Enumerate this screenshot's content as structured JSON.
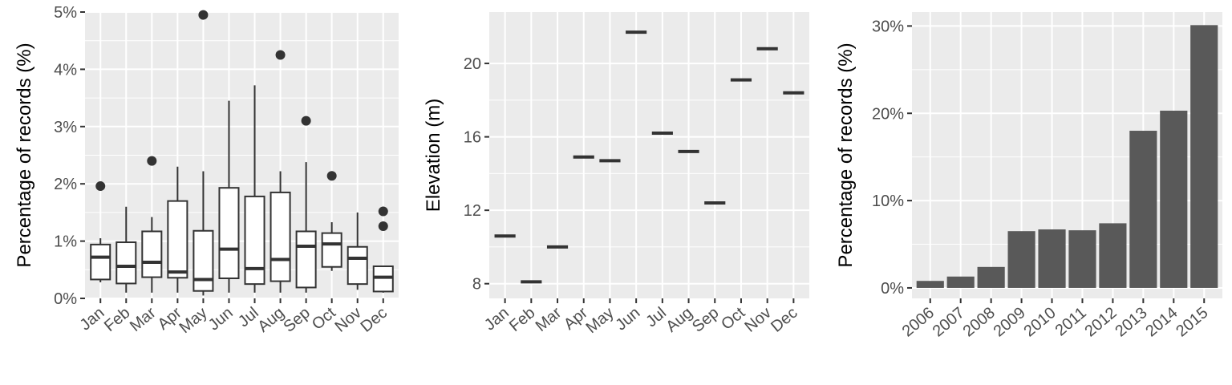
{
  "chart_data": [
    {
      "type": "box",
      "ylabel": "Percentage of records (%)",
      "xlabel": "",
      "ylim": [
        0,
        5
      ],
      "yticks": [
        "0%",
        "1%",
        "2%",
        "3%",
        "4%",
        "5%"
      ],
      "ytick_values": [
        0,
        1,
        2,
        3,
        4,
        5
      ],
      "categories": [
        "Jan",
        "Feb",
        "Mar",
        "Apr",
        "May",
        "Jun",
        "Jul",
        "Aug",
        "Sep",
        "Oct",
        "Nov",
        "Dec"
      ],
      "boxes": [
        {
          "min": 0.28,
          "q1": 0.33,
          "median": 0.72,
          "q3": 0.94,
          "max": 1.05,
          "outliers": [
            1.96
          ]
        },
        {
          "min": 0.1,
          "q1": 0.26,
          "median": 0.56,
          "q3": 0.98,
          "max": 1.6,
          "outliers": []
        },
        {
          "min": 0.1,
          "q1": 0.37,
          "median": 0.63,
          "q3": 1.17,
          "max": 1.42,
          "outliers": [
            2.4
          ]
        },
        {
          "min": 0.1,
          "q1": 0.36,
          "median": 0.46,
          "q3": 1.7,
          "max": 2.3,
          "outliers": []
        },
        {
          "min": 0.05,
          "q1": 0.13,
          "median": 0.33,
          "q3": 1.18,
          "max": 2.22,
          "outliers": [
            4.95
          ]
        },
        {
          "min": 0.1,
          "q1": 0.35,
          "median": 0.86,
          "q3": 1.93,
          "max": 3.45,
          "outliers": []
        },
        {
          "min": 0.1,
          "q1": 0.25,
          "median": 0.52,
          "q3": 1.78,
          "max": 3.72,
          "outliers": []
        },
        {
          "min": 0.1,
          "q1": 0.3,
          "median": 0.68,
          "q3": 1.85,
          "max": 2.22,
          "outliers": [
            4.25
          ]
        },
        {
          "min": 0.1,
          "q1": 0.19,
          "median": 0.91,
          "q3": 1.17,
          "max": 2.38,
          "outliers": [
            3.1
          ]
        },
        {
          "min": 0.48,
          "q1": 0.55,
          "median": 0.95,
          "q3": 1.14,
          "max": 1.33,
          "outliers": [
            2.14
          ]
        },
        {
          "min": 0.15,
          "q1": 0.25,
          "median": 0.7,
          "q3": 0.9,
          "max": 1.5,
          "outliers": []
        },
        {
          "min": 0.1,
          "q1": 0.12,
          "median": 0.37,
          "q3": 0.56,
          "max": 0.56,
          "outliers": [
            1.52,
            1.26
          ]
        }
      ]
    },
    {
      "type": "scatter",
      "ylabel": "Elevation (m)",
      "xlabel": "",
      "ylim": [
        7.2,
        22.8
      ],
      "yticks": [
        "8",
        "12",
        "16",
        "20"
      ],
      "ytick_values": [
        8,
        12,
        16,
        20
      ],
      "categories": [
        "Jan",
        "Feb",
        "Mar",
        "Apr",
        "May",
        "Jun",
        "Jul",
        "Aug",
        "Sep",
        "Oct",
        "Nov",
        "Dec"
      ],
      "values": [
        10.6,
        8.1,
        10.0,
        14.9,
        14.7,
        21.7,
        16.2,
        15.2,
        12.4,
        19.1,
        20.8,
        18.4
      ]
    },
    {
      "type": "bar",
      "ylabel": "Percentage of records (%)",
      "xlabel": "",
      "ylim": [
        -1.2,
        31.6
      ],
      "yticks": [
        "0%",
        "10%",
        "20%",
        "30%"
      ],
      "ytick_values": [
        0,
        10,
        20,
        30
      ],
      "categories": [
        "2006",
        "2007",
        "2008",
        "2009",
        "2010",
        "2011",
        "2012",
        "2013",
        "2014",
        "2015"
      ],
      "values": [
        0.8,
        1.3,
        2.4,
        6.5,
        6.7,
        6.6,
        7.4,
        18.0,
        20.3,
        30.1
      ]
    }
  ],
  "colors": {
    "panel": "#ebebeb",
    "grid": "#ffffff",
    "box_line": "#333333",
    "bar_fill": "#595959",
    "tick_text": "#4d4d4d"
  }
}
